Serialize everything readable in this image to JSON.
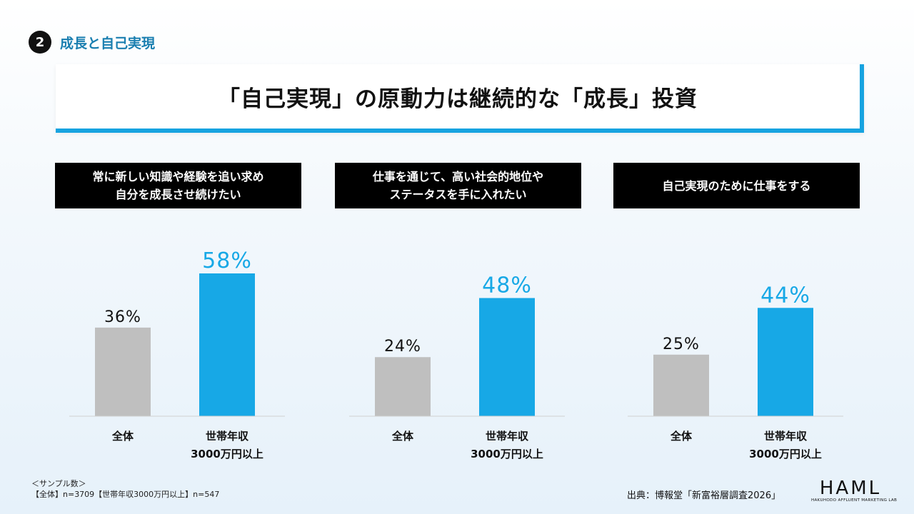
{
  "section": {
    "number": "2",
    "title": "成長と自己実現"
  },
  "headline": "「自己実現」の原動力は継続的な「成長」投資",
  "colors": {
    "total": "#bfbfbf",
    "high_income": "#17a8e6",
    "accent_line": "#17a3e0"
  },
  "chart_data": [
    {
      "type": "bar",
      "title": "常に新しい知識や経験を追い求め\n自分を成長させ続けたい",
      "categories": [
        "全体",
        "世帯年収\n3000万円以上"
      ],
      "values": [
        36,
        58
      ],
      "labels": [
        "36%",
        "58%"
      ],
      "unit": "%"
    },
    {
      "type": "bar",
      "title": "仕事を通じて、高い社会的地位や\nステータスを手に入れたい",
      "categories": [
        "全体",
        "世帯年収\n3000万円以上"
      ],
      "values": [
        24,
        48
      ],
      "labels": [
        "24%",
        "48%"
      ],
      "unit": "%"
    },
    {
      "type": "bar",
      "title": "自己実現のために仕事をする",
      "categories": [
        "全体",
        "世帯年収\n3000万円以上"
      ],
      "values": [
        25,
        44
      ],
      "labels": [
        "25%",
        "44%"
      ],
      "unit": "%"
    }
  ],
  "footnote": {
    "line1": "＜サンプル数＞",
    "line2": "【全体】n=3709【世帯年収3000万円以上】n=547"
  },
  "source": "出典：博報堂「新富裕層調査2026」",
  "logo": {
    "main": "HAML",
    "sub": "HAKUHODO AFFLUENT MARKETING LAB"
  }
}
